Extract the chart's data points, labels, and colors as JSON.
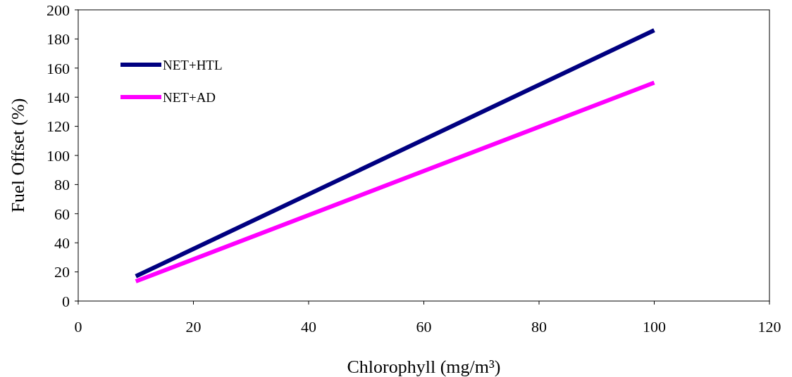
{
  "chart_data": {
    "type": "line",
    "xlabel": "Chlorophyll (mg/m³)",
    "ylabel": "Fuel Offset (%)",
    "xlim": [
      0,
      120
    ],
    "xticks": [
      0,
      20,
      40,
      60,
      80,
      100,
      120
    ],
    "ylim": [
      0,
      200
    ],
    "yticks": [
      0,
      20,
      40,
      60,
      80,
      100,
      120,
      140,
      160,
      180,
      200
    ],
    "grid": false,
    "legend": "top left",
    "line_style": "solid",
    "x": [
      10,
      100
    ],
    "series": [
      {
        "name": "NET+HTL",
        "color": "#000080",
        "values": [
          17,
          186
        ]
      },
      {
        "name": "NET+AD",
        "color": "#ff00ff",
        "values": [
          13.5,
          150
        ]
      }
    ]
  }
}
